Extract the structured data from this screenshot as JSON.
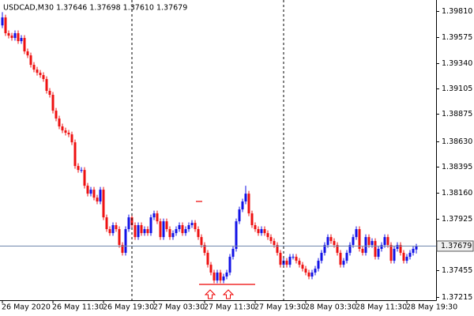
{
  "chart_data": {
    "type": "candlestick",
    "title": "USDCAD,M30  1.37646 1.37698 1.37610 1.37679",
    "up_color": "#1212e6",
    "down_color": "#ee1111",
    "price_line_color": "#7188ad",
    "x": [
      "26 May 2020",
      null,
      null,
      null,
      null,
      null,
      null,
      null,
      null,
      null,
      null,
      null,
      null,
      null,
      null,
      null,
      "26 May 11:30",
      null,
      null,
      null,
      null,
      null,
      null,
      null,
      null,
      null,
      null,
      null,
      null,
      null,
      null,
      null,
      "26 May 19:30",
      null,
      null,
      null,
      null,
      null,
      null,
      null,
      null,
      null,
      null,
      null,
      null,
      null,
      null,
      null,
      "27 May 03:30",
      null,
      null,
      null,
      null,
      null,
      null,
      null,
      null,
      null,
      null,
      null,
      null,
      null,
      null,
      null,
      "27 May 11:30",
      null,
      null,
      null,
      null,
      null,
      null,
      null,
      null,
      null,
      null,
      null,
      null,
      null,
      null,
      null,
      "27 May 19:30",
      null,
      null,
      null,
      null,
      null,
      null,
      null,
      null,
      null,
      null,
      null,
      null,
      null,
      null,
      null,
      "28 May 03:30",
      null,
      null,
      null,
      null,
      null,
      null,
      null,
      null,
      null,
      null,
      null,
      null,
      null,
      null,
      null,
      "28 May 11:30",
      null,
      null,
      null,
      null,
      null,
      null,
      null,
      null,
      null,
      null,
      null,
      null,
      null,
      null,
      null,
      "28 May 19:30",
      null,
      null,
      null
    ],
    "open": [
      1.3968,
      1.39752,
      1.39609,
      1.39587,
      1.39566,
      1.39609,
      1.39537,
      1.39566,
      1.39444,
      1.39408,
      1.39322,
      1.39279,
      1.3925,
      1.39229,
      1.39193,
      1.39086,
      1.3905,
      1.38906,
      1.38835,
      1.38763,
      1.38727,
      1.38706,
      1.38691,
      1.38619,
      1.38404,
      1.38368,
      1.38368,
      1.38225,
      1.38153,
      1.38189,
      1.38117,
      1.38082,
      1.38189,
      1.37938,
      1.37831,
      1.37795,
      1.37867,
      1.37831,
      1.37687,
      1.37616,
      1.37831,
      1.37938,
      1.37867,
      1.37759,
      1.37867,
      1.37795,
      1.37831,
      1.37795,
      1.37938,
      1.37974,
      1.37902,
      1.37759,
      1.37902,
      1.37831,
      1.37759,
      1.37795,
      1.37831,
      1.37867,
      1.37795,
      1.37831,
      1.37867,
      1.37888,
      1.37831,
      1.37759,
      1.37687,
      1.37616,
      1.37508,
      1.37437,
      1.37365,
      1.37437,
      1.37365,
      1.37401,
      1.37437,
      1.3758,
      1.37652,
      1.37902,
      1.3801,
      1.38082,
      1.38153,
      1.37974,
      1.37867,
      1.37831,
      1.37795,
      1.37831,
      1.37795,
      1.37759,
      1.37723,
      1.37687,
      1.37616,
      1.37508,
      1.37544,
      1.37508,
      1.3758,
      1.3758,
      1.37544,
      1.37508,
      1.37472,
      1.37437,
      1.37401,
      1.37437,
      1.37472,
      1.37544,
      1.37616,
      1.37687,
      1.37759,
      1.37723,
      1.37687,
      1.37616,
      1.37508,
      1.37544,
      1.37616,
      1.37687,
      1.37759,
      1.37831,
      1.37652,
      1.37616,
      1.37759,
      1.37687,
      1.37723,
      1.3758,
      1.37652,
      1.37687,
      1.37759,
      1.37687,
      1.37544,
      1.37652,
      1.37687,
      1.37616,
      1.37544,
      1.3758,
      1.37616,
      1.37646
    ],
    "high": [
      1.398,
      1.39777,
      1.39634,
      1.39612,
      1.39634,
      1.39634,
      1.39591,
      1.39591,
      1.39469,
      1.39433,
      1.39347,
      1.39304,
      1.39275,
      1.39254,
      1.39218,
      1.39111,
      1.39075,
      1.38931,
      1.3886,
      1.38788,
      1.38752,
      1.38731,
      1.38716,
      1.38644,
      1.38429,
      1.38393,
      1.38393,
      1.3825,
      1.38214,
      1.38214,
      1.38142,
      1.38214,
      1.38214,
      1.37963,
      1.37856,
      1.37892,
      1.37892,
      1.37856,
      1.37712,
      1.37856,
      1.37963,
      1.37963,
      1.37892,
      1.37892,
      1.37892,
      1.37856,
      1.37856,
      1.37963,
      1.37999,
      1.37999,
      1.37927,
      1.37927,
      1.37927,
      1.37856,
      1.3782,
      1.37856,
      1.37892,
      1.37892,
      1.37856,
      1.37892,
      1.37913,
      1.37913,
      1.37856,
      1.37784,
      1.37712,
      1.37641,
      1.37533,
      1.37462,
      1.37462,
      1.37462,
      1.37426,
      1.37462,
      1.37605,
      1.37677,
      1.37927,
      1.38035,
      1.38107,
      1.38225,
      1.38178,
      1.37999,
      1.37892,
      1.37856,
      1.37856,
      1.37856,
      1.3782,
      1.37784,
      1.37748,
      1.37712,
      1.37641,
      1.37569,
      1.37569,
      1.37605,
      1.37605,
      1.37605,
      1.37569,
      1.37533,
      1.37497,
      1.37462,
      1.37462,
      1.37497,
      1.37569,
      1.37641,
      1.37712,
      1.37784,
      1.37784,
      1.37748,
      1.37712,
      1.37641,
      1.37569,
      1.37641,
      1.37712,
      1.37784,
      1.37856,
      1.37856,
      1.37677,
      1.37784,
      1.37784,
      1.37748,
      1.37748,
      1.37677,
      1.37712,
      1.37784,
      1.37784,
      1.37712,
      1.37677,
      1.37712,
      1.37712,
      1.37641,
      1.37605,
      1.37641,
      1.37677,
      1.37698
    ],
    "low": [
      1.39655,
      1.39584,
      1.39562,
      1.39541,
      1.39541,
      1.39512,
      1.39512,
      1.39419,
      1.39383,
      1.39297,
      1.39254,
      1.39225,
      1.39204,
      1.39168,
      1.39061,
      1.39025,
      1.38881,
      1.3881,
      1.38738,
      1.38702,
      1.38681,
      1.38666,
      1.38594,
      1.38379,
      1.38343,
      1.38343,
      1.382,
      1.38128,
      1.38128,
      1.38092,
      1.38057,
      1.38057,
      1.37913,
      1.37806,
      1.3777,
      1.3777,
      1.37806,
      1.37662,
      1.37591,
      1.37591,
      1.37806,
      1.37842,
      1.37734,
      1.37734,
      1.3777,
      1.3777,
      1.3777,
      1.3777,
      1.37913,
      1.37877,
      1.37734,
      1.37734,
      1.37806,
      1.37734,
      1.37734,
      1.3777,
      1.37806,
      1.3777,
      1.3777,
      1.37806,
      1.37842,
      1.37806,
      1.37734,
      1.37662,
      1.37591,
      1.37483,
      1.37412,
      1.3734,
      1.3734,
      1.3734,
      1.3734,
      1.37376,
      1.37412,
      1.37555,
      1.37627,
      1.37877,
      1.37985,
      1.38057,
      1.37949,
      1.37842,
      1.37806,
      1.3777,
      1.3777,
      1.3777,
      1.37734,
      1.37698,
      1.37662,
      1.37591,
      1.37483,
      1.37483,
      1.37483,
      1.37483,
      1.37555,
      1.37519,
      1.37483,
      1.37447,
      1.37412,
      1.37376,
      1.37376,
      1.37412,
      1.37447,
      1.37519,
      1.37591,
      1.37662,
      1.37698,
      1.37662,
      1.37591,
      1.37483,
      1.37483,
      1.37519,
      1.37591,
      1.37662,
      1.37734,
      1.37627,
      1.37591,
      1.37591,
      1.37662,
      1.37662,
      1.37555,
      1.37555,
      1.37627,
      1.37662,
      1.37662,
      1.37519,
      1.37519,
      1.37627,
      1.37591,
      1.37519,
      1.37519,
      1.37555,
      1.37591,
      1.3761
    ],
    "close": [
      1.39752,
      1.39609,
      1.39587,
      1.39566,
      1.39609,
      1.39537,
      1.39566,
      1.39444,
      1.39408,
      1.39322,
      1.39279,
      1.3925,
      1.39229,
      1.39193,
      1.39086,
      1.3905,
      1.38906,
      1.38835,
      1.38763,
      1.38727,
      1.38706,
      1.38691,
      1.38619,
      1.38404,
      1.38368,
      1.38368,
      1.38225,
      1.38153,
      1.38189,
      1.38117,
      1.38082,
      1.38189,
      1.37938,
      1.37831,
      1.37795,
      1.37867,
      1.37831,
      1.37687,
      1.37616,
      1.37831,
      1.37938,
      1.37867,
      1.37759,
      1.37867,
      1.37795,
      1.37831,
      1.37795,
      1.37938,
      1.37974,
      1.37902,
      1.37759,
      1.37902,
      1.37831,
      1.37759,
      1.37795,
      1.37831,
      1.37867,
      1.37795,
      1.37831,
      1.37867,
      1.37888,
      1.37831,
      1.37759,
      1.37687,
      1.37616,
      1.37508,
      1.37437,
      1.37365,
      1.37437,
      1.37365,
      1.37401,
      1.37437,
      1.3758,
      1.37652,
      1.37902,
      1.3801,
      1.38082,
      1.38153,
      1.37974,
      1.37867,
      1.37831,
      1.37795,
      1.37831,
      1.37795,
      1.37759,
      1.37723,
      1.37687,
      1.37616,
      1.37508,
      1.37544,
      1.37508,
      1.3758,
      1.3758,
      1.37544,
      1.37508,
      1.37472,
      1.37437,
      1.37401,
      1.37437,
      1.37472,
      1.37544,
      1.37616,
      1.37687,
      1.37759,
      1.37723,
      1.37687,
      1.37616,
      1.37508,
      1.37544,
      1.37616,
      1.37687,
      1.37759,
      1.37831,
      1.37652,
      1.37616,
      1.37759,
      1.37687,
      1.37723,
      1.3758,
      1.37652,
      1.37687,
      1.37759,
      1.37687,
      1.37544,
      1.37652,
      1.37687,
      1.37616,
      1.37544,
      1.3758,
      1.37616,
      1.37652,
      1.37679
    ],
    "ylim": [
      1.37186,
      1.39896
    ],
    "yticks": [
      {
        "value": 1.3981,
        "label": "1.39810"
      },
      {
        "value": 1.39575,
        "label": "1.39575"
      },
      {
        "value": 1.3934,
        "label": "1.39340"
      },
      {
        "value": 1.39105,
        "label": "1.39105"
      },
      {
        "value": 1.38875,
        "label": "1.38875"
      },
      {
        "value": 1.3863,
        "label": "1.38630"
      },
      {
        "value": 1.38395,
        "label": "1.38395"
      },
      {
        "value": 1.3816,
        "label": "1.38160"
      },
      {
        "value": 1.37925,
        "label": "1.37925"
      },
      {
        "value": 1.37455,
        "label": "1.37455"
      },
      {
        "value": 1.37215,
        "label": "1.37215"
      }
    ]
  }
}
